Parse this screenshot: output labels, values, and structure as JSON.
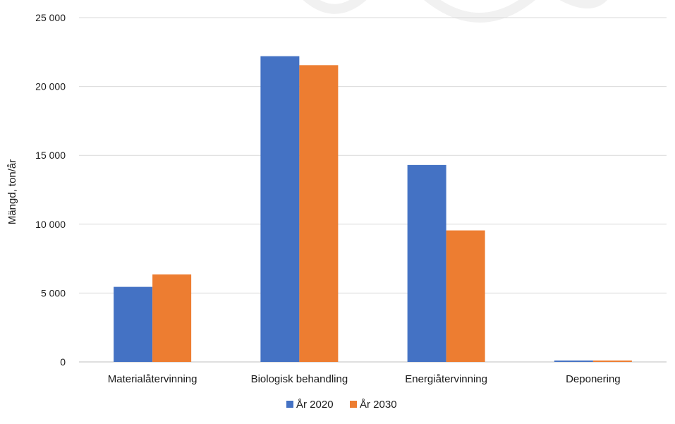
{
  "chart_data": {
    "type": "bar",
    "title": "",
    "xlabel": "",
    "ylabel": "Mängd, ton/år",
    "ylim": [
      0,
      25000
    ],
    "ytick_values": [
      0,
      5000,
      10000,
      15000,
      20000,
      25000
    ],
    "ytick_labels": [
      "0",
      "5 000",
      "10 000",
      "15 000",
      "20 000",
      "25 000"
    ],
    "categories": [
      "Materialåtervinning",
      "Biologisk behandling",
      "Energiåtervinning",
      "Deponering"
    ],
    "series": [
      {
        "name": "År 2020",
        "color": "#4472C4",
        "values": [
          5450,
          22200,
          14300,
          100
        ]
      },
      {
        "name": "År 2030",
        "color": "#ED7D31",
        "values": [
          6350,
          21550,
          9550,
          100
        ]
      }
    ],
    "grid": true,
    "legend_position": "bottom"
  }
}
